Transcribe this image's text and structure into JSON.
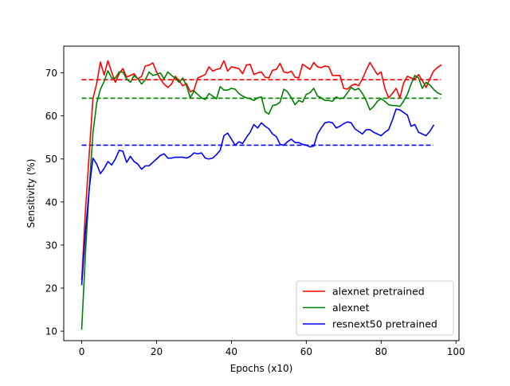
{
  "chart_data": {
    "type": "line",
    "title": "",
    "xlabel": "Epochs (x10)",
    "ylabel": "Sensitivity (%)",
    "xlim": [
      -4.8,
      100.8
    ],
    "ylim": [
      7.8,
      76.2
    ],
    "xticks": [
      0,
      20,
      40,
      60,
      80,
      100
    ],
    "yticks": [
      10,
      20,
      30,
      40,
      50,
      60,
      70
    ],
    "grid": false,
    "legend_position": "lower-right",
    "series": [
      {
        "name": "alexnet pretrained",
        "color": "#ff0000",
        "mean": 68.4,
        "mean_x_range": [
          0,
          96
        ],
        "x": [
          0,
          1,
          2,
          3,
          4,
          5,
          6,
          7,
          8,
          9,
          10,
          11,
          12,
          13,
          14,
          15,
          16,
          17,
          18,
          19,
          20,
          21,
          22,
          23,
          24,
          25,
          26,
          27,
          28,
          29,
          30,
          31,
          32,
          33,
          34,
          35,
          36,
          37,
          38,
          39,
          40,
          41,
          42,
          43,
          44,
          45,
          46,
          47,
          48,
          49,
          50,
          51,
          52,
          53,
          54,
          55,
          56,
          57,
          58,
          59,
          60,
          61,
          62,
          63,
          64,
          65,
          66,
          67,
          68,
          69,
          70,
          71,
          72,
          73,
          74,
          75,
          76,
          77,
          78,
          79,
          80,
          81,
          82,
          83,
          84,
          85,
          86,
          87,
          88,
          89,
          90,
          91,
          92,
          93,
          94,
          95,
          96
        ],
        "values": [
          22.0,
          38.0,
          51.0,
          64.0,
          67.5,
          72.5,
          69.5,
          72.8,
          70.2,
          67.8,
          69.8,
          71.0,
          69.0,
          69.4,
          69.8,
          68.6,
          69.2,
          71.6,
          71.8,
          72.3,
          70.2,
          68.6,
          67.4,
          66.6,
          67.4,
          69.2,
          68.2,
          67.0,
          67.5,
          65.6,
          66.0,
          68.8,
          69.2,
          69.6,
          71.4,
          70.4,
          70.8,
          71.0,
          72.8,
          70.4,
          71.4,
          71.2,
          71.0,
          69.8,
          71.8,
          72.0,
          69.6,
          70.0,
          70.2,
          69.0,
          68.8,
          70.6,
          70.8,
          72.2,
          70.2,
          70.0,
          70.4,
          69.0,
          68.8,
          72.0,
          71.4,
          70.8,
          72.4,
          71.4,
          71.2,
          71.6,
          71.4,
          69.4,
          69.4,
          69.4,
          66.4,
          66.2,
          67.0,
          67.4,
          67.0,
          68.6,
          70.6,
          72.4,
          71.0,
          69.6,
          70.2,
          66.4,
          64.2,
          65.2,
          66.4,
          64.2,
          67.6,
          69.2,
          68.8,
          68.6,
          69.6,
          68.2,
          66.6,
          68.6,
          70.4,
          71.2,
          71.8
        ]
      },
      {
        "name": "alexnet",
        "color": "#008000",
        "mean": 64.1,
        "mean_x_range": [
          0,
          96
        ],
        "x": [
          0,
          1,
          2,
          3,
          4,
          5,
          6,
          7,
          8,
          9,
          10,
          11,
          12,
          13,
          14,
          15,
          16,
          17,
          18,
          19,
          20,
          21,
          22,
          23,
          24,
          25,
          26,
          27,
          28,
          29,
          30,
          31,
          32,
          33,
          34,
          35,
          36,
          37,
          38,
          39,
          40,
          41,
          42,
          43,
          44,
          45,
          46,
          47,
          48,
          49,
          50,
          51,
          52,
          53,
          54,
          55,
          56,
          57,
          58,
          59,
          60,
          61,
          62,
          63,
          64,
          65,
          66,
          67,
          68,
          69,
          70,
          71,
          72,
          73,
          74,
          75,
          76,
          77,
          78,
          79,
          80,
          81,
          82,
          83,
          84,
          85,
          86,
          87,
          88,
          89,
          90,
          91,
          92,
          93,
          94,
          95,
          96
        ],
        "values": [
          10.5,
          28.0,
          43.0,
          56.0,
          63.0,
          66.2,
          68.0,
          70.5,
          68.8,
          68.8,
          70.2,
          70.2,
          68.6,
          67.8,
          69.4,
          68.6,
          67.4,
          68.4,
          70.2,
          69.4,
          69.6,
          70.0,
          68.6,
          70.2,
          69.4,
          68.8,
          67.8,
          68.8,
          67.0,
          64.2,
          65.8,
          65.0,
          64.2,
          63.8,
          65.2,
          64.6,
          64.0,
          66.8,
          66.0,
          66.0,
          66.4,
          66.2,
          65.2,
          64.6,
          64.2,
          64.0,
          63.6,
          64.2,
          64.4,
          61.0,
          60.4,
          62.4,
          62.6,
          63.2,
          66.2,
          65.6,
          64.2,
          62.6,
          63.6,
          63.2,
          65.0,
          65.4,
          66.4,
          64.6,
          64.2,
          63.6,
          63.6,
          63.4,
          64.4,
          64.0,
          64.2,
          65.4,
          66.6,
          66.0,
          66.4,
          65.2,
          63.6,
          61.4,
          62.2,
          63.4,
          64.0,
          63.4,
          62.6,
          62.4,
          62.4,
          62.2,
          63.4,
          65.0,
          67.4,
          69.4,
          68.8,
          66.4,
          67.8,
          67.2,
          66.2,
          65.4,
          65.0
        ]
      },
      {
        "name": "resnext50 pretrained",
        "color": "#0000ff",
        "mean": 53.2,
        "mean_x_range": [
          0,
          94
        ],
        "x": [
          0,
          1,
          2,
          3,
          4,
          5,
          6,
          7,
          8,
          9,
          10,
          11,
          12,
          13,
          14,
          15,
          16,
          17,
          18,
          19,
          20,
          21,
          22,
          23,
          24,
          25,
          26,
          27,
          28,
          29,
          30,
          31,
          32,
          33,
          34,
          35,
          36,
          37,
          38,
          39,
          40,
          41,
          42,
          43,
          44,
          45,
          46,
          47,
          48,
          49,
          50,
          51,
          52,
          53,
          54,
          55,
          56,
          57,
          58,
          59,
          60,
          61,
          62,
          63,
          64,
          65,
          66,
          67,
          68,
          69,
          70,
          71,
          72,
          73,
          74,
          75,
          76,
          77,
          78,
          79,
          80,
          81,
          82,
          83,
          84,
          85,
          86,
          87,
          88,
          89,
          90,
          91,
          92,
          93,
          94
        ],
        "values": [
          20.8,
          33.0,
          43.0,
          50.2,
          48.8,
          46.6,
          47.8,
          49.4,
          48.6,
          50.0,
          52.0,
          51.8,
          49.2,
          50.6,
          49.4,
          48.8,
          47.6,
          48.4,
          48.4,
          49.2,
          50.0,
          50.8,
          51.2,
          50.2,
          50.2,
          50.4,
          50.4,
          50.4,
          50.2,
          50.6,
          51.4,
          51.2,
          51.4,
          50.2,
          50.0,
          50.2,
          51.0,
          52.0,
          55.4,
          56.0,
          54.6,
          53.2,
          54.0,
          53.6,
          55.0,
          56.2,
          58.0,
          57.2,
          58.4,
          57.6,
          57.0,
          55.8,
          55.2,
          53.4,
          53.2,
          54.0,
          54.6,
          53.8,
          53.8,
          53.4,
          53.2,
          52.8,
          53.0,
          55.8,
          57.2,
          58.4,
          58.6,
          58.4,
          57.2,
          57.6,
          58.2,
          58.6,
          58.4,
          57.0,
          56.4,
          55.8,
          56.8,
          56.8,
          56.2,
          55.8,
          55.4,
          56.2,
          56.8,
          59.0,
          61.6,
          61.4,
          60.8,
          60.2,
          57.6,
          58.0,
          56.2,
          55.8,
          55.4,
          56.4,
          57.8
        ]
      }
    ]
  }
}
